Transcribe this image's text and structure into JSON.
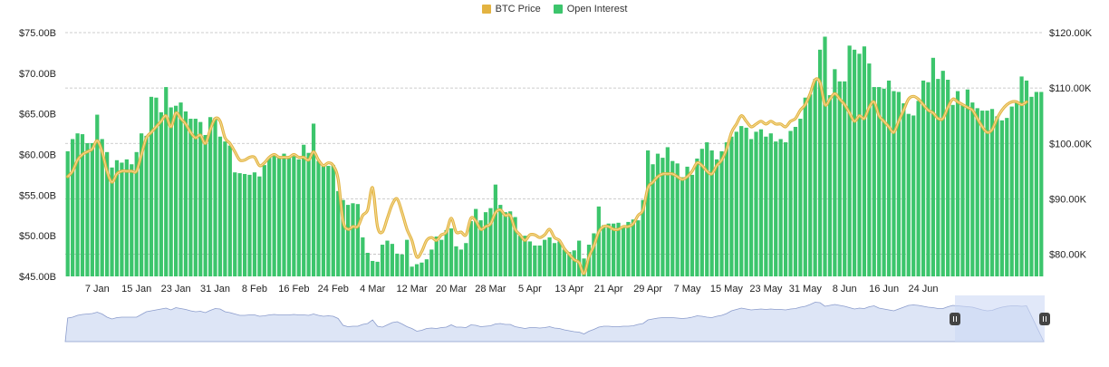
{
  "legend": {
    "btc_label": "BTC Price",
    "oi_label": "Open Interest"
  },
  "colors": {
    "bar": "#3cc56c",
    "line": "#e3b341",
    "navigator_fill": "#dde5f6",
    "navigator_line": "#8b9ccc",
    "navigator_selection": "#cdd8f5",
    "grid": "#bdbdbd"
  },
  "chart_data": {
    "type": "bar",
    "title": "",
    "legend_position": "top-center",
    "grid": true,
    "left_axis": {
      "range": [
        45,
        75
      ],
      "ticks": [
        45,
        50,
        55,
        60,
        65,
        70,
        75
      ],
      "tick_labels": [
        "$45.00B",
        "$50.00B",
        "$55.00B",
        "$60.00B",
        "$65.00B",
        "$70.00B",
        "$75.00B"
      ]
    },
    "right_axis": {
      "range": [
        76,
        120
      ],
      "ticks": [
        80,
        90,
        100,
        110,
        120
      ],
      "tick_labels": [
        "$80.00K",
        "$90.00K",
        "$100.00K",
        "$110.00K",
        "$120.00K"
      ]
    },
    "x_tick_labels": [
      "7 Jan",
      "15 Jan",
      "23 Jan",
      "31 Jan",
      "8 Feb",
      "16 Feb",
      "24 Feb",
      "4 Mar",
      "12 Mar",
      "20 Mar",
      "28 Mar",
      "5 Apr",
      "13 Apr",
      "21 Apr",
      "29 Apr",
      "7 May",
      "15 May",
      "23 May",
      "31 May",
      "8 Jun",
      "16 Jun",
      "24 Jun"
    ],
    "x_tick_index": [
      6,
      14,
      22,
      30,
      38,
      46,
      54,
      62,
      70,
      78,
      86,
      94,
      102,
      110,
      118,
      126,
      134,
      142,
      150,
      158,
      166,
      174
    ],
    "series": [
      {
        "name": "Open Interest",
        "axis": "left",
        "values": [
          60.4,
          61.9,
          62.6,
          62.5,
          61.4,
          61.4,
          64.9,
          61.9,
          60.3,
          58.4,
          59.3,
          59.0,
          59.4,
          58.8,
          60.3,
          62.6,
          62.3,
          67.1,
          67.0,
          65.2,
          68.3,
          65.8,
          66.0,
          66.4,
          65.3,
          64.4,
          64.4,
          64.0,
          62.4,
          64.6,
          64.5,
          62.2,
          61.6,
          61.1,
          57.8,
          57.7,
          57.6,
          57.5,
          57.8,
          57.3,
          58.7,
          59.6,
          59.9,
          59.7,
          60.1,
          59.7,
          59.8,
          59.4,
          61.2,
          60.2,
          63.8,
          59.2,
          58.6,
          58.6,
          58.7,
          55.5,
          54.4,
          53.8,
          54.0,
          53.9,
          49.8,
          47.9,
          46.9,
          46.8,
          48.9,
          49.4,
          49.0,
          47.8,
          47.7,
          49.5,
          46.2,
          46.5,
          46.7,
          47.1,
          48.3,
          49.9,
          49.5,
          50.7,
          50.9,
          48.7,
          48.3,
          49.1,
          51.8,
          53.3,
          51.9,
          52.9,
          53.4,
          56.3,
          53.8,
          52.9,
          53.0,
          52.3,
          50.0,
          50.0,
          49.3,
          48.8,
          48.8,
          49.5,
          49.8,
          49.1,
          49.3,
          48.3,
          48.0,
          48.2,
          49.4,
          47.2,
          48.9,
          50.3,
          53.6,
          51.3,
          51.5,
          51.5,
          51.6,
          51.0,
          51.7,
          52.0,
          51.9,
          54.4,
          60.5,
          58.8,
          60.1,
          59.6,
          60.9,
          59.2,
          58.9,
          57.2,
          58.5,
          57.5,
          59.5,
          60.7,
          61.5,
          60.5,
          59.4,
          60.4,
          61.5,
          62.2,
          62.8,
          63.5,
          63.3,
          61.9,
          62.8,
          63.1,
          62.2,
          62.6,
          61.6,
          61.9,
          61.5,
          62.9,
          63.4,
          64.4,
          67.0,
          67.4,
          69.3,
          72.9,
          74.5,
          67.3,
          70.5,
          69.0,
          69.0,
          73.4,
          72.9,
          72.4,
          73.3,
          71.2,
          68.3,
          68.3,
          68.1,
          69.1,
          67.8,
          67.7,
          66.3,
          65.0,
          64.8,
          66.6,
          69.1,
          68.9,
          71.9,
          69.3,
          70.3,
          69.2,
          66.1,
          67.8,
          66.2,
          68.0,
          66.4,
          65.7,
          65.4,
          65.4,
          65.6,
          64.7,
          64.2,
          64.5,
          65.9,
          66.5,
          69.6,
          69.1,
          67.1,
          67.7,
          67.7
        ]
      },
      {
        "name": "BTC Price",
        "axis": "right",
        "values": [
          94.0,
          95.0,
          97.0,
          98.0,
          98.5,
          99.0,
          100.5,
          98.5,
          95.0,
          93.0,
          94.5,
          95.0,
          95.0,
          95.0,
          95.0,
          98.0,
          101.0,
          102.0,
          103.0,
          104.0,
          105.0,
          103.0,
          105.5,
          104.5,
          103.5,
          102.0,
          101.0,
          101.5,
          100.0,
          102.5,
          104.5,
          104.0,
          101.0,
          100.0,
          98.5,
          97.0,
          97.0,
          97.5,
          97.5,
          96.0,
          96.5,
          97.5,
          98.0,
          97.5,
          97.5,
          97.5,
          98.0,
          97.5,
          97.5,
          97.0,
          98.5,
          97.0,
          96.0,
          96.5,
          96.0,
          93.5,
          86.0,
          84.5,
          85.0,
          85.0,
          87.0,
          88.0,
          92.0,
          85.0,
          84.0,
          86.5,
          89.0,
          90.0,
          87.5,
          84.5,
          82.5,
          79.5,
          80.5,
          82.5,
          83.0,
          82.5,
          83.5,
          84.0,
          86.5,
          84.0,
          84.0,
          83.5,
          86.5,
          86.0,
          84.5,
          85.0,
          85.5,
          87.5,
          88.0,
          87.0,
          87.0,
          84.5,
          83.5,
          82.5,
          83.5,
          83.5,
          83.0,
          83.5,
          84.5,
          83.0,
          82.5,
          81.0,
          80.0,
          79.0,
          78.5,
          76.5,
          79.5,
          81.5,
          84.0,
          85.0,
          85.0,
          84.5,
          84.5,
          85.0,
          85.0,
          85.5,
          87.0,
          88.0,
          92.0,
          93.0,
          94.0,
          94.5,
          94.5,
          94.5,
          94.0,
          93.5,
          94.0,
          95.0,
          96.5,
          96.0,
          95.0,
          94.5,
          96.0,
          97.0,
          99.0,
          102.0,
          103.5,
          105.0,
          104.0,
          103.0,
          103.5,
          104.0,
          103.5,
          104.0,
          103.5,
          103.5,
          103.0,
          104.0,
          104.5,
          106.0,
          107.0,
          109.0,
          111.5,
          111.0,
          107.0,
          108.0,
          109.0,
          108.0,
          107.0,
          105.5,
          104.0,
          105.0,
          104.5,
          106.5,
          107.5,
          105.0,
          104.0,
          103.0,
          102.0,
          104.0,
          106.0,
          108.0,
          108.5,
          108.0,
          107.0,
          106.0,
          105.5,
          104.5,
          104.5,
          106.5,
          108.0,
          107.5,
          107.0,
          106.5,
          106.0,
          104.5,
          103.0,
          102.0,
          102.5,
          104.5,
          106.0,
          107.0,
          107.5,
          107.5,
          107.0,
          107.5
        ]
      }
    ]
  }
}
